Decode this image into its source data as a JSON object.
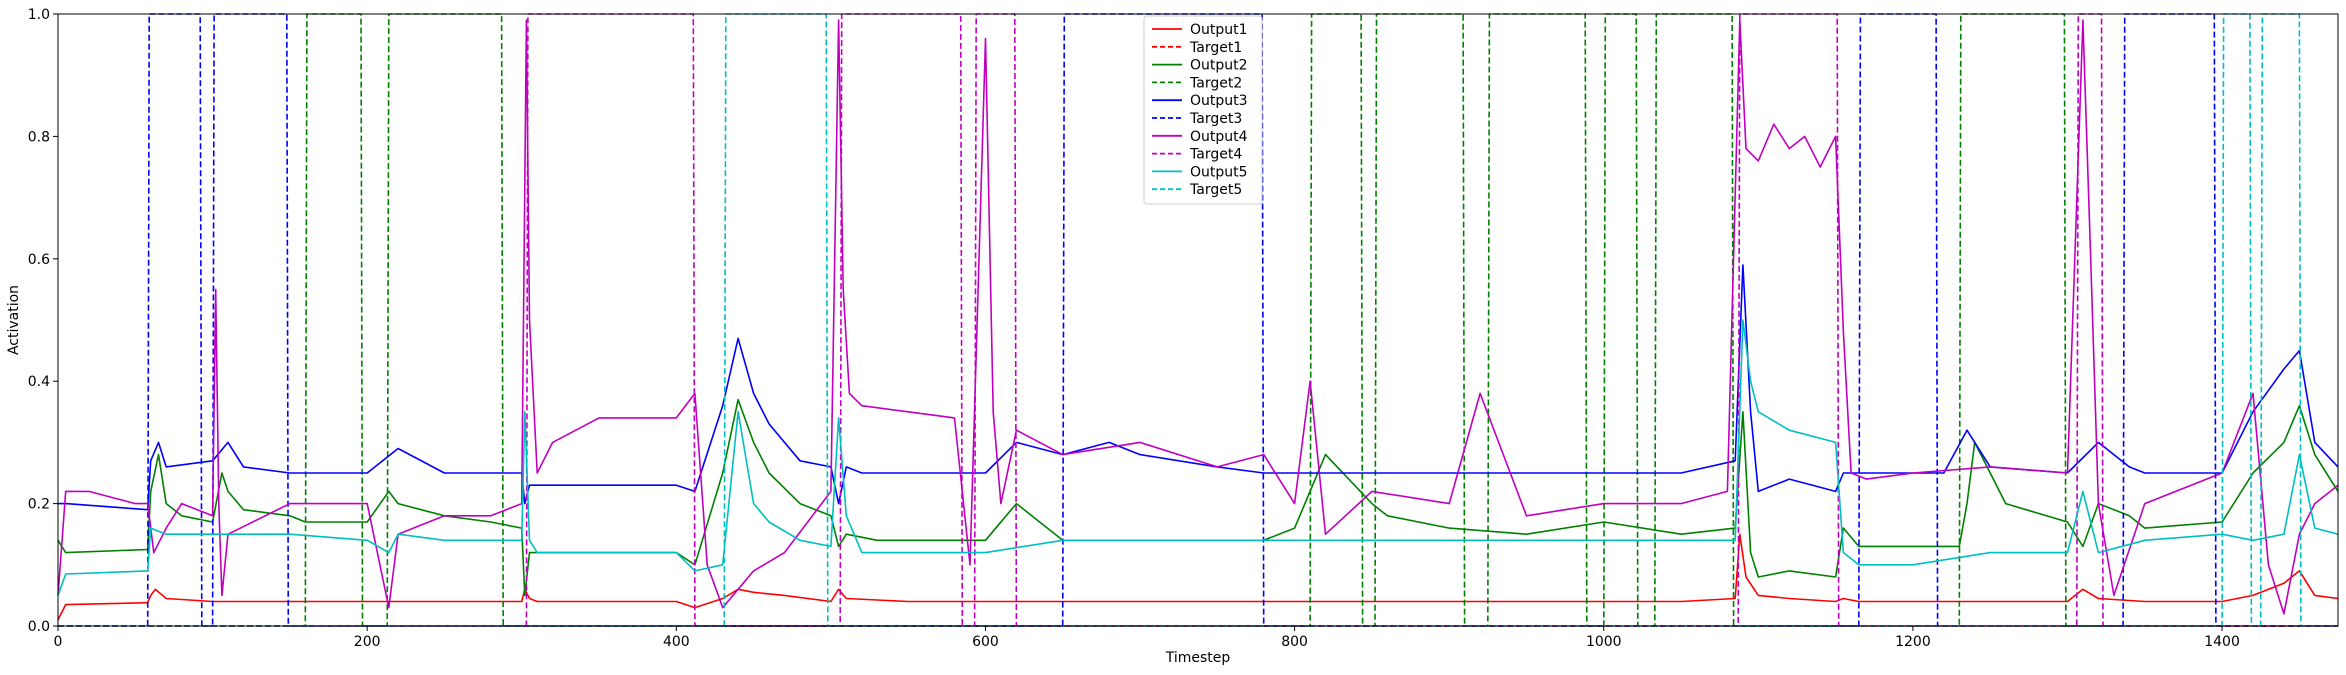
{
  "chart_data": {
    "type": "line",
    "title": "",
    "xlabel": "Timestep",
    "ylabel": "Activation",
    "xlim": [
      0,
      1475
    ],
    "ylim": [
      0,
      1.0
    ],
    "xticks": [
      0,
      200,
      400,
      600,
      800,
      1000,
      1200,
      1400
    ],
    "yticks": [
      0.0,
      0.2,
      0.4,
      0.6,
      0.8,
      1.0
    ],
    "xtick_labels": [
      "0",
      "200",
      "400",
      "600",
      "800",
      "1000",
      "1200",
      "1400"
    ],
    "ytick_labels": [
      "0.0",
      "0.2",
      "0.4",
      "0.6",
      "0.8",
      "1.0"
    ],
    "grid": false,
    "legend_position": "top-center",
    "series": [
      {
        "name": "Output1",
        "color": "#ff0000",
        "style": "solid",
        "x": [
          0,
          5,
          58,
          60,
          63,
          70,
          100,
          150,
          200,
          250,
          300,
          302,
          305,
          310,
          350,
          400,
          412,
          430,
          440,
          450,
          470,
          500,
          505,
          510,
          550,
          600,
          650,
          700,
          750,
          800,
          850,
          900,
          950,
          1000,
          1050,
          1085,
          1088,
          1092,
          1100,
          1120,
          1150,
          1155,
          1165,
          1200,
          1250,
          1300,
          1310,
          1320,
          1350,
          1400,
          1420,
          1440,
          1450,
          1460,
          1475
        ],
        "y": [
          0.01,
          0.035,
          0.038,
          0.05,
          0.06,
          0.045,
          0.04,
          0.04,
          0.04,
          0.04,
          0.04,
          0.06,
          0.045,
          0.04,
          0.04,
          0.04,
          0.03,
          0.045,
          0.06,
          0.055,
          0.05,
          0.04,
          0.06,
          0.045,
          0.04,
          0.04,
          0.04,
          0.04,
          0.04,
          0.04,
          0.04,
          0.04,
          0.04,
          0.04,
          0.04,
          0.045,
          0.15,
          0.08,
          0.05,
          0.045,
          0.04,
          0.045,
          0.04,
          0.04,
          0.04,
          0.04,
          0.06,
          0.045,
          0.04,
          0.04,
          0.05,
          0.07,
          0.09,
          0.05,
          0.045
        ]
      },
      {
        "name": "Target1",
        "color": "#ff0000",
        "style": "dashed",
        "x": [
          0,
          1475
        ],
        "y": [
          0,
          0
        ]
      },
      {
        "name": "Output2",
        "color": "#008000",
        "style": "solid",
        "x": [
          0,
          5,
          58,
          60,
          65,
          70,
          80,
          100,
          106,
          110,
          120,
          150,
          160,
          200,
          214,
          220,
          250,
          280,
          300,
          302,
          305,
          310,
          350,
          400,
          412,
          430,
          440,
          450,
          460,
          480,
          500,
          505,
          510,
          530,
          550,
          600,
          620,
          650,
          700,
          750,
          780,
          800,
          820,
          850,
          860,
          900,
          950,
          1000,
          1050,
          1085,
          1090,
          1095,
          1100,
          1120,
          1150,
          1155,
          1165,
          1200,
          1230,
          1235,
          1240,
          1260,
          1300,
          1310,
          1320,
          1340,
          1350,
          1400,
          1420,
          1440,
          1450,
          1460,
          1475
        ],
        "y": [
          0.14,
          0.12,
          0.125,
          0.22,
          0.28,
          0.2,
          0.18,
          0.17,
          0.25,
          0.22,
          0.19,
          0.18,
          0.17,
          0.17,
          0.22,
          0.2,
          0.18,
          0.17,
          0.16,
          0.05,
          0.12,
          0.12,
          0.12,
          0.12,
          0.1,
          0.25,
          0.37,
          0.3,
          0.25,
          0.2,
          0.18,
          0.13,
          0.15,
          0.14,
          0.14,
          0.14,
          0.2,
          0.14,
          0.14,
          0.14,
          0.14,
          0.16,
          0.28,
          0.2,
          0.18,
          0.16,
          0.15,
          0.17,
          0.15,
          0.16,
          0.35,
          0.12,
          0.08,
          0.09,
          0.08,
          0.16,
          0.13,
          0.13,
          0.13,
          0.2,
          0.3,
          0.2,
          0.17,
          0.13,
          0.2,
          0.18,
          0.16,
          0.17,
          0.25,
          0.3,
          0.36,
          0.28,
          0.22
        ]
      },
      {
        "name": "Target2",
        "color": "#008000",
        "style": "dashed",
        "x": [
          0,
          160,
          161,
          196,
          197,
          213,
          214,
          287,
          288,
          810,
          811,
          843,
          844,
          852,
          853,
          909,
          910,
          925,
          926,
          988,
          989,
          1000,
          1001,
          1021,
          1022,
          1033,
          1034,
          1083,
          1084,
          1230,
          1231,
          1298,
          1299,
          1475
        ],
        "y": [
          0,
          0,
          1,
          1,
          0,
          0,
          1,
          1,
          0,
          0,
          1,
          1,
          0,
          0,
          1,
          1,
          0,
          0,
          1,
          1,
          0,
          0,
          1,
          1,
          0,
          0,
          1,
          1,
          0,
          0,
          1,
          1,
          0,
          0
        ]
      },
      {
        "name": "Output3",
        "color": "#0000ff",
        "style": "solid",
        "x": [
          0,
          5,
          58,
          60,
          65,
          70,
          100,
          110,
          120,
          150,
          200,
          220,
          250,
          300,
          302,
          305,
          310,
          350,
          400,
          412,
          430,
          440,
          450,
          460,
          480,
          500,
          505,
          510,
          520,
          550,
          600,
          620,
          650,
          680,
          700,
          750,
          780,
          800,
          850,
          900,
          950,
          1000,
          1050,
          1085,
          1090,
          1095,
          1100,
          1120,
          1150,
          1155,
          1165,
          1200,
          1220,
          1235,
          1250,
          1300,
          1320,
          1340,
          1350,
          1400,
          1420,
          1440,
          1450,
          1460,
          1475
        ],
        "y": [
          0.2,
          0.2,
          0.19,
          0.27,
          0.3,
          0.26,
          0.27,
          0.3,
          0.26,
          0.25,
          0.25,
          0.29,
          0.25,
          0.25,
          0.2,
          0.23,
          0.23,
          0.23,
          0.23,
          0.22,
          0.36,
          0.47,
          0.38,
          0.33,
          0.27,
          0.26,
          0.2,
          0.26,
          0.25,
          0.25,
          0.25,
          0.3,
          0.28,
          0.3,
          0.28,
          0.26,
          0.25,
          0.25,
          0.25,
          0.25,
          0.25,
          0.25,
          0.25,
          0.27,
          0.59,
          0.35,
          0.22,
          0.24,
          0.22,
          0.25,
          0.25,
          0.25,
          0.25,
          0.32,
          0.26,
          0.25,
          0.3,
          0.26,
          0.25,
          0.25,
          0.35,
          0.42,
          0.45,
          0.3,
          0.26
        ]
      },
      {
        "name": "Target3",
        "color": "#0000ff",
        "style": "dashed",
        "x": [
          0,
          58,
          59,
          92,
          93,
          100,
          101,
          148,
          149,
          650,
          651,
          779,
          780,
          1165,
          1166,
          1215,
          1216,
          1336,
          1337,
          1395,
          1396,
          1475
        ],
        "y": [
          0,
          0,
          1,
          1,
          0,
          0,
          1,
          1,
          0,
          0,
          1,
          1,
          0,
          0,
          1,
          1,
          0,
          0,
          1,
          1,
          0,
          0
        ]
      },
      {
        "name": "Output4",
        "color": "#c000c0",
        "style": "solid",
        "x": [
          0,
          5,
          20,
          50,
          58,
          62,
          70,
          80,
          100,
          102,
          104,
          106,
          110,
          150,
          200,
          214,
          220,
          250,
          280,
          300,
          303,
          305,
          310,
          320,
          350,
          400,
          412,
          420,
          430,
          440,
          450,
          470,
          500,
          505,
          508,
          512,
          520,
          550,
          580,
          590,
          600,
          605,
          610,
          620,
          650,
          700,
          750,
          780,
          800,
          810,
          820,
          850,
          900,
          920,
          950,
          1000,
          1050,
          1080,
          1088,
          1092,
          1100,
          1110,
          1120,
          1130,
          1140,
          1150,
          1155,
          1160,
          1170,
          1200,
          1250,
          1300,
          1310,
          1315,
          1320,
          1330,
          1350,
          1400,
          1420,
          1430,
          1440,
          1450,
          1460,
          1475
        ],
        "y": [
          0.05,
          0.22,
          0.22,
          0.2,
          0.2,
          0.12,
          0.16,
          0.2,
          0.18,
          0.55,
          0.2,
          0.05,
          0.15,
          0.2,
          0.2,
          0.03,
          0.15,
          0.18,
          0.18,
          0.2,
          0.99,
          0.5,
          0.25,
          0.3,
          0.34,
          0.34,
          0.38,
          0.1,
          0.03,
          0.06,
          0.09,
          0.12,
          0.22,
          0.99,
          0.55,
          0.38,
          0.36,
          0.35,
          0.34,
          0.1,
          0.96,
          0.35,
          0.2,
          0.32,
          0.28,
          0.3,
          0.26,
          0.28,
          0.2,
          0.4,
          0.15,
          0.22,
          0.2,
          0.38,
          0.18,
          0.2,
          0.2,
          0.22,
          0.99,
          0.78,
          0.76,
          0.82,
          0.78,
          0.8,
          0.75,
          0.8,
          0.48,
          0.25,
          0.24,
          0.25,
          0.26,
          0.25,
          0.99,
          0.6,
          0.2,
          0.05,
          0.2,
          0.25,
          0.38,
          0.1,
          0.02,
          0.15,
          0.2,
          0.23
        ]
      },
      {
        "name": "Target4",
        "color": "#c000c0",
        "style": "dashed",
        "x": [
          0,
          303,
          304,
          411,
          412,
          506,
          507,
          584,
          585,
          593,
          594,
          619,
          620,
          1087,
          1088,
          1151,
          1152,
          1306,
          1307,
          1322,
          1323,
          1475
        ],
        "y": [
          0,
          0,
          1,
          1,
          0,
          0,
          1,
          1,
          0,
          0,
          1,
          1,
          0,
          0,
          1,
          1,
          0,
          0,
          1,
          1,
          0,
          0
        ]
      },
      {
        "name": "Output5",
        "color": "#00bfbf",
        "style": "solid",
        "x": [
          0,
          5,
          58,
          60,
          70,
          100,
          150,
          200,
          214,
          220,
          250,
          300,
          302,
          305,
          310,
          350,
          400,
          412,
          430,
          440,
          450,
          460,
          480,
          500,
          505,
          510,
          520,
          550,
          600,
          650,
          700,
          750,
          800,
          850,
          900,
          950,
          1000,
          1050,
          1085,
          1090,
          1095,
          1100,
          1120,
          1150,
          1155,
          1165,
          1200,
          1250,
          1300,
          1310,
          1320,
          1350,
          1400,
          1420,
          1440,
          1450,
          1460,
          1475
        ],
        "y": [
          0.05,
          0.085,
          0.09,
          0.16,
          0.15,
          0.15,
          0.15,
          0.14,
          0.12,
          0.15,
          0.14,
          0.14,
          0.35,
          0.14,
          0.12,
          0.12,
          0.12,
          0.09,
          0.1,
          0.35,
          0.2,
          0.17,
          0.14,
          0.13,
          0.34,
          0.18,
          0.12,
          0.12,
          0.12,
          0.14,
          0.14,
          0.14,
          0.14,
          0.14,
          0.14,
          0.14,
          0.14,
          0.14,
          0.14,
          0.5,
          0.4,
          0.35,
          0.32,
          0.3,
          0.12,
          0.1,
          0.1,
          0.12,
          0.12,
          0.22,
          0.12,
          0.14,
          0.15,
          0.14,
          0.15,
          0.28,
          0.16,
          0.15
        ]
      },
      {
        "name": "Target5",
        "color": "#00bfbf",
        "style": "dashed",
        "x": [
          0,
          431,
          432,
          497,
          498,
          1400,
          1401,
          1418,
          1419,
          1425,
          1426,
          1450,
          1451,
          1475
        ],
        "y": [
          0,
          0,
          1,
          1,
          0,
          0,
          1,
          1,
          0,
          0,
          1,
          1,
          0,
          0
        ]
      }
    ]
  }
}
